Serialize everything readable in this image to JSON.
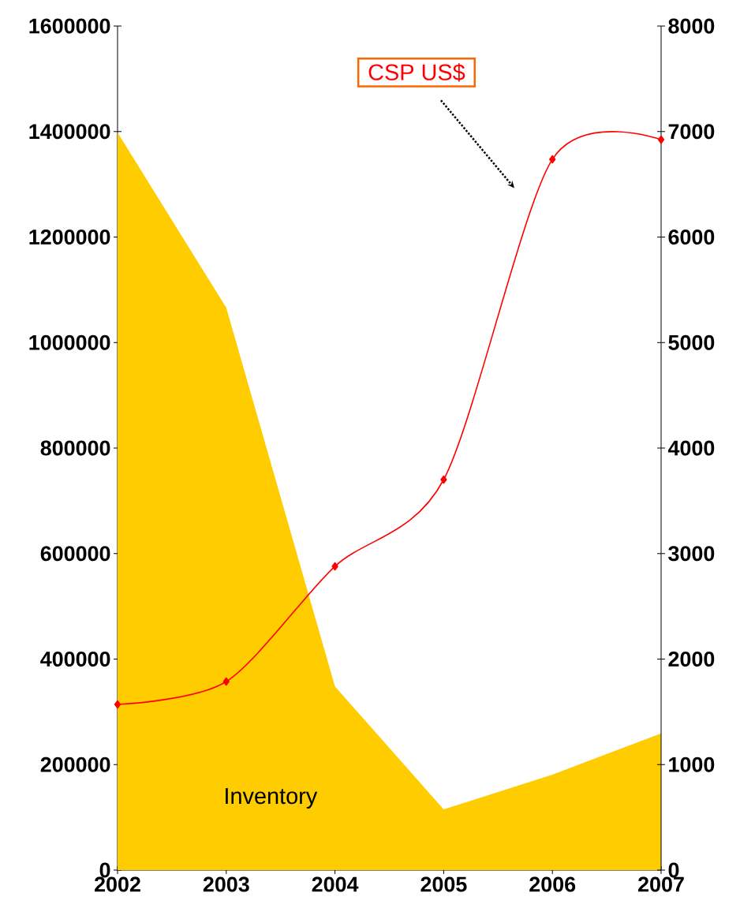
{
  "chart_data": {
    "type": "area",
    "x": [
      2002,
      2003,
      2004,
      2005,
      2006,
      2007
    ],
    "series": [
      {
        "name": "Inventory",
        "color": "#ffcc00",
        "axis": "y",
        "values": [
          1398000,
          1066000,
          348000,
          115000,
          181000,
          259000
        ]
      },
      {
        "name": "CSP US$",
        "type": "line",
        "color": "#ff0000",
        "axis": "y2",
        "marker": "diamond",
        "values": [
          1570,
          1787,
          2879,
          3701,
          6737,
          6924
        ]
      }
    ],
    "xlim": [
      2002,
      2007
    ],
    "xticks": [
      2002,
      2003,
      2004,
      2005,
      2006,
      2007
    ],
    "ylim": [
      0,
      1600000
    ],
    "yticks": [
      0,
      200000,
      400000,
      600000,
      800000,
      1000000,
      1200000,
      1400000,
      1600000
    ],
    "y2lim": [
      0,
      8000
    ],
    "y2ticks": [
      0,
      1000,
      2000,
      3000,
      4000,
      5000,
      6000,
      7000,
      8000
    ],
    "grid": false
  }
}
